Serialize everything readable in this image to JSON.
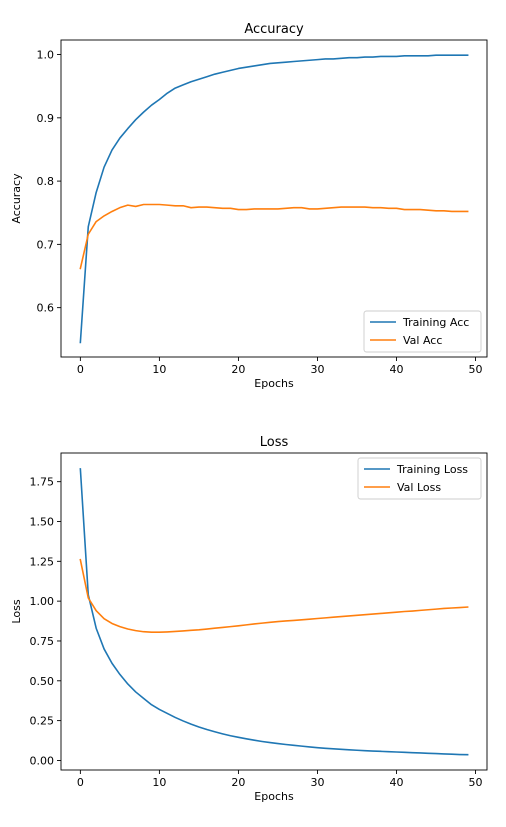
{
  "chart_data": [
    {
      "type": "line",
      "title": "Accuracy",
      "xlabel": "Epochs",
      "ylabel": "Accuracy",
      "xlim": [
        -2.45,
        51.45
      ],
      "ylim": [
        0.522,
        1.023
      ],
      "xticks": [
        0,
        10,
        20,
        30,
        40,
        50
      ],
      "yticks": [
        0.6,
        0.7,
        0.8,
        0.9,
        1.0
      ],
      "xtick_labels": [
        "0",
        "10",
        "20",
        "30",
        "40",
        "50"
      ],
      "ytick_labels": [
        "0.6",
        "0.7",
        "0.8",
        "0.9",
        "1.0"
      ],
      "legend": "lower right",
      "grid": false,
      "series": [
        {
          "name": "Training Acc",
          "color": "#1f77b4",
          "x": [
            0,
            1,
            2,
            3,
            4,
            5,
            6,
            7,
            8,
            9,
            10,
            11,
            12,
            13,
            14,
            15,
            16,
            17,
            18,
            19,
            20,
            21,
            22,
            23,
            24,
            25,
            26,
            27,
            28,
            29,
            30,
            31,
            32,
            33,
            34,
            35,
            36,
            37,
            38,
            39,
            40,
            41,
            42,
            43,
            44,
            45,
            46,
            47,
            48,
            49
          ],
          "y": [
            0.545,
            0.728,
            0.782,
            0.822,
            0.849,
            0.868,
            0.883,
            0.897,
            0.909,
            0.92,
            0.929,
            0.939,
            0.947,
            0.952,
            0.957,
            0.961,
            0.965,
            0.969,
            0.972,
            0.975,
            0.978,
            0.98,
            0.982,
            0.984,
            0.986,
            0.987,
            0.988,
            0.989,
            0.99,
            0.991,
            0.992,
            0.993,
            0.993,
            0.994,
            0.995,
            0.995,
            0.996,
            0.996,
            0.997,
            0.997,
            0.997,
            0.998,
            0.998,
            0.998,
            0.998,
            0.999,
            0.999,
            0.999,
            0.999,
            0.999
          ]
        },
        {
          "name": "Val Acc",
          "color": "#ff7f0e",
          "x": [
            0,
            1,
            2,
            3,
            4,
            5,
            6,
            7,
            8,
            9,
            10,
            11,
            12,
            13,
            14,
            15,
            16,
            17,
            18,
            19,
            20,
            21,
            22,
            23,
            24,
            25,
            26,
            27,
            28,
            29,
            30,
            31,
            32,
            33,
            34,
            35,
            36,
            37,
            38,
            39,
            40,
            41,
            42,
            43,
            44,
            45,
            46,
            47,
            48,
            49
          ],
          "y": [
            0.662,
            0.716,
            0.736,
            0.745,
            0.752,
            0.758,
            0.762,
            0.76,
            0.763,
            0.763,
            0.763,
            0.762,
            0.761,
            0.761,
            0.758,
            0.759,
            0.759,
            0.758,
            0.757,
            0.757,
            0.755,
            0.755,
            0.756,
            0.756,
            0.756,
            0.756,
            0.757,
            0.758,
            0.758,
            0.756,
            0.756,
            0.757,
            0.758,
            0.759,
            0.759,
            0.759,
            0.759,
            0.758,
            0.758,
            0.757,
            0.757,
            0.755,
            0.755,
            0.755,
            0.754,
            0.753,
            0.753,
            0.752,
            0.752,
            0.752
          ]
        }
      ]
    },
    {
      "type": "line",
      "title": "Loss",
      "xlabel": "Epochs",
      "ylabel": "Loss",
      "xlim": [
        -2.45,
        51.45
      ],
      "ylim": [
        -0.06,
        1.93
      ],
      "xticks": [
        0,
        10,
        20,
        30,
        40,
        50
      ],
      "yticks": [
        0.0,
        0.25,
        0.5,
        0.75,
        1.0,
        1.25,
        1.5,
        1.75
      ],
      "xtick_labels": [
        "0",
        "10",
        "20",
        "30",
        "40",
        "50"
      ],
      "ytick_labels": [
        "0.00",
        "0.25",
        "0.50",
        "0.75",
        "1.00",
        "1.25",
        "1.50",
        "1.75"
      ],
      "legend": "upper right",
      "grid": false,
      "series": [
        {
          "name": "Training Loss",
          "color": "#1f77b4",
          "x": [
            0,
            1,
            2,
            3,
            4,
            5,
            6,
            7,
            8,
            9,
            10,
            11,
            12,
            13,
            14,
            15,
            16,
            17,
            18,
            19,
            20,
            21,
            22,
            23,
            24,
            25,
            26,
            27,
            28,
            29,
            30,
            31,
            32,
            33,
            34,
            35,
            36,
            37,
            38,
            39,
            40,
            41,
            42,
            43,
            44,
            45,
            46,
            47,
            48,
            49
          ],
          "y": [
            1.83,
            1.04,
            0.83,
            0.7,
            0.61,
            0.54,
            0.48,
            0.43,
            0.39,
            0.35,
            0.32,
            0.295,
            0.27,
            0.248,
            0.228,
            0.21,
            0.194,
            0.18,
            0.167,
            0.155,
            0.145,
            0.136,
            0.127,
            0.119,
            0.112,
            0.106,
            0.1,
            0.095,
            0.09,
            0.085,
            0.08,
            0.076,
            0.073,
            0.07,
            0.067,
            0.064,
            0.061,
            0.059,
            0.057,
            0.055,
            0.053,
            0.051,
            0.049,
            0.047,
            0.045,
            0.043,
            0.041,
            0.039,
            0.037,
            0.036
          ]
        },
        {
          "name": "Val Loss",
          "color": "#ff7f0e",
          "x": [
            0,
            1,
            2,
            3,
            4,
            5,
            6,
            7,
            8,
            9,
            10,
            11,
            12,
            13,
            14,
            15,
            16,
            17,
            18,
            19,
            20,
            21,
            22,
            23,
            24,
            25,
            26,
            27,
            28,
            29,
            30,
            31,
            32,
            33,
            34,
            35,
            36,
            37,
            38,
            39,
            40,
            41,
            42,
            43,
            44,
            45,
            46,
            47,
            48,
            49
          ],
          "y": [
            1.26,
            1.02,
            0.94,
            0.89,
            0.86,
            0.84,
            0.825,
            0.815,
            0.808,
            0.805,
            0.805,
            0.807,
            0.81,
            0.813,
            0.817,
            0.82,
            0.825,
            0.83,
            0.835,
            0.84,
            0.845,
            0.851,
            0.857,
            0.862,
            0.867,
            0.872,
            0.876,
            0.879,
            0.883,
            0.887,
            0.891,
            0.895,
            0.899,
            0.903,
            0.907,
            0.911,
            0.915,
            0.919,
            0.923,
            0.927,
            0.931,
            0.935,
            0.938,
            0.942,
            0.946,
            0.95,
            0.954,
            0.957,
            0.96,
            0.963
          ]
        }
      ]
    }
  ]
}
